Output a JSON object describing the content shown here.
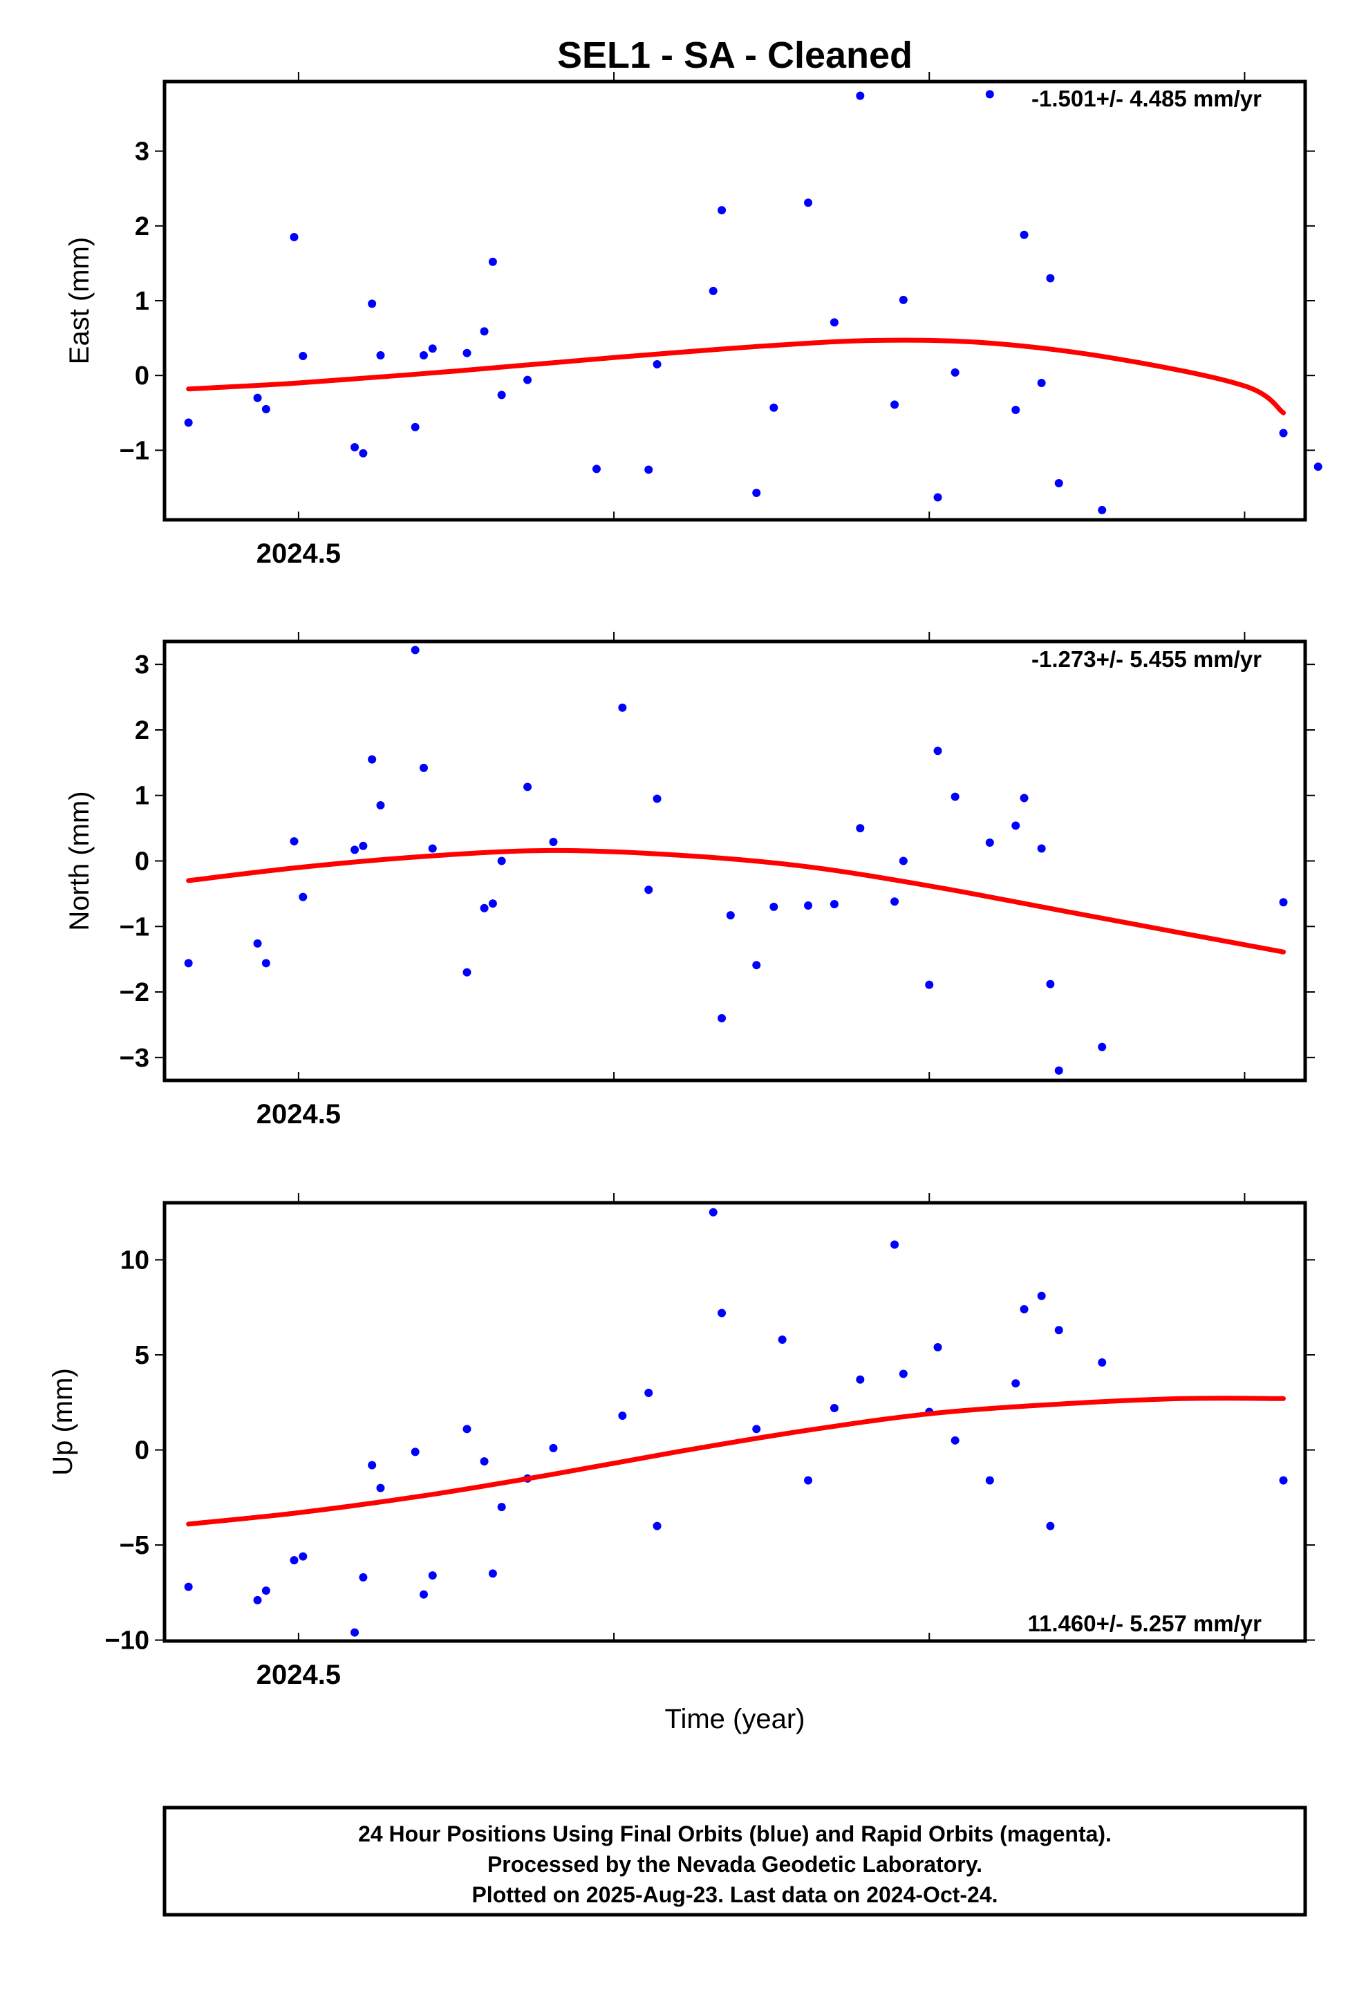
{
  "title": "SEL1  - SA - Cleaned",
  "xlabel": "Time (year)",
  "footer": {
    "line1": "24 Hour Positions Using Final Orbits (blue) and Rapid Orbits (magenta).",
    "line2": "Processed by the Nevada Geodetic Laboratory.",
    "line3": "Plotted on 2025-Aug-23. Last data on 2024-Oct-24."
  },
  "colors": {
    "points": "#0000ff",
    "fit": "#ff0000",
    "frame": "#000000"
  },
  "chart_data": [
    {
      "type": "scatter",
      "name": "east",
      "ylabel": "East (mm)",
      "rate": "-1.501+/- 4.485 mm/yr",
      "xlim": [
        2024.4575,
        2024.8192
      ],
      "ylim": [
        -1.93,
        3.93
      ],
      "xticks": [
        2024.5,
        2024.6,
        2024.7,
        2024.8
      ],
      "xtick_labels": [
        "2024.5",
        "",
        "",
        ""
      ],
      "yticks": [
        3,
        2,
        1,
        0,
        -1
      ],
      "ytick_labels": [
        "3",
        "2",
        "1",
        "0",
        "−1"
      ],
      "x": [
        2024.4651,
        2024.487,
        2024.4897,
        2024.4986,
        2024.5014,
        2024.5178,
        2024.5205,
        2024.5233,
        2024.526,
        2024.537,
        2024.5397,
        2024.5425,
        2024.5534,
        2024.5589,
        2024.5616,
        2024.5644,
        2024.5726,
        2024.5945,
        2024.611,
        2024.6137,
        2024.6315,
        2024.6342,
        2024.6452,
        2024.6507,
        2024.6616,
        2024.6699,
        2024.6781,
        2024.689,
        2024.6918,
        2024.7027,
        2024.7082,
        2024.7192,
        2024.7274,
        2024.7301,
        2024.7356,
        2024.7384,
        2024.7548,
        2024.8123
      ],
      "y": [
        -0.63,
        -0.3,
        -0.45,
        1.85,
        0.26,
        -0.96,
        -1.04,
        0.96,
        0.27,
        -0.69,
        0.27,
        0.36,
        0.3,
        0.59,
        1.52,
        -0.26,
        -0.06,
        -1.25,
        -1.26,
        0.15,
        1.13,
        2.21,
        -1.57,
        -0.43,
        2.31,
        0.71,
        3.74,
        -0.39,
        1.01,
        -1.63,
        0.04,
        3.76,
        -0.46,
        1.88,
        -0.1,
        1.3,
        -1.8,
        -0.77
      ],
      "extra_points": [
        {
          "x": 2024.7411,
          "y": -1.44
        },
        {
          "x": 2024.8233,
          "y": -1.22
        }
      ],
      "fit_x": [
        2024.4651,
        2024.5,
        2024.55,
        2024.6,
        2024.65,
        2024.685,
        2024.72,
        2024.76,
        2024.8,
        2024.8123
      ],
      "fit_y": [
        -0.18,
        -0.1,
        0.06,
        0.24,
        0.4,
        0.47,
        0.43,
        0.22,
        -0.14,
        -0.5
      ]
    },
    {
      "type": "scatter",
      "name": "north",
      "ylabel": "North (mm)",
      "rate": "-1.273+/- 5.455 mm/yr",
      "xlim": [
        2024.4575,
        2024.8192
      ],
      "ylim": [
        -3.35,
        3.35
      ],
      "xticks": [
        2024.5,
        2024.6,
        2024.7,
        2024.8
      ],
      "xtick_labels": [
        "2024.5",
        "",
        "",
        ""
      ],
      "yticks": [
        3,
        2,
        1,
        0,
        -1,
        -2,
        -3
      ],
      "ytick_labels": [
        "3",
        "2",
        "1",
        "0",
        "−1",
        "−2",
        "−3"
      ],
      "x": [
        2024.4651,
        2024.487,
        2024.4897,
        2024.4986,
        2024.5014,
        2024.5178,
        2024.5205,
        2024.5233,
        2024.526,
        2024.537,
        2024.5397,
        2024.5425,
        2024.5534,
        2024.5589,
        2024.5616,
        2024.5644,
        2024.5726,
        2024.5808,
        2024.6027,
        2024.611,
        2024.6137,
        2024.6342,
        2024.637,
        2024.6452,
        2024.6507,
        2024.6616,
        2024.6699,
        2024.6781,
        2024.689,
        2024.6918,
        2024.7,
        2024.7027,
        2024.7082,
        2024.7192,
        2024.7274,
        2024.7301,
        2024.7356,
        2024.7384,
        2024.7411,
        2024.7548,
        2024.8123
      ],
      "y": [
        -1.56,
        -1.26,
        -1.56,
        0.3,
        -0.55,
        0.17,
        0.23,
        1.55,
        0.85,
        3.22,
        1.42,
        0.19,
        -1.7,
        -0.72,
        -0.65,
        0.0,
        1.13,
        0.29,
        2.34,
        -0.44,
        0.95,
        -2.4,
        -0.83,
        -1.59,
        -0.7,
        -0.68,
        -0.66,
        0.5,
        -0.62,
        0.0,
        -1.89,
        1.68,
        0.98,
        0.28,
        0.54,
        0.96,
        0.19,
        -1.88,
        -3.2,
        -2.84,
        -0.63
      ],
      "extra_points": [],
      "fit_x": [
        2024.4651,
        2024.5,
        2024.54,
        2024.58,
        2024.62,
        2024.66,
        2024.7,
        2024.74,
        2024.78,
        2024.8123
      ],
      "fit_y": [
        -0.3,
        -0.1,
        0.07,
        0.16,
        0.09,
        -0.08,
        -0.38,
        -0.74,
        -1.1,
        -1.39
      ]
    },
    {
      "type": "scatter",
      "name": "up",
      "ylabel": "Up (mm)",
      "rate": "11.460+/- 5.257 mm/yr",
      "xlim": [
        2024.4575,
        2024.8192
      ],
      "ylim": [
        -10.05,
        13.0
      ],
      "xticks": [
        2024.5,
        2024.6,
        2024.7,
        2024.8
      ],
      "xtick_labels": [
        "2024.5",
        "",
        "",
        ""
      ],
      "yticks": [
        10,
        5,
        0,
        -5,
        -10
      ],
      "ytick_labels": [
        "10",
        "5",
        "0",
        "−5",
        "−10"
      ],
      "x": [
        2024.4651,
        2024.487,
        2024.4897,
        2024.4986,
        2024.5014,
        2024.5178,
        2024.5205,
        2024.5233,
        2024.526,
        2024.537,
        2024.5397,
        2024.5425,
        2024.5534,
        2024.5589,
        2024.5616,
        2024.5644,
        2024.5726,
        2024.5808,
        2024.6027,
        2024.611,
        2024.6137,
        2024.6315,
        2024.6342,
        2024.6452,
        2024.6534,
        2024.6616,
        2024.6699,
        2024.6781,
        2024.689,
        2024.6918,
        2024.7,
        2024.7027,
        2024.7082,
        2024.7192,
        2024.7274,
        2024.7301,
        2024.7356,
        2024.7384,
        2024.7411,
        2024.7548,
        2024.8123
      ],
      "y": [
        -7.2,
        -7.9,
        -7.4,
        -5.8,
        -5.6,
        -9.6,
        -6.7,
        -0.8,
        -2.0,
        -0.1,
        -7.6,
        -6.6,
        1.1,
        -0.6,
        -6.5,
        -3.0,
        -1.5,
        0.1,
        1.8,
        3.0,
        -4.0,
        12.5,
        7.2,
        1.1,
        5.8,
        -1.6,
        2.2,
        3.7,
        10.8,
        4.0,
        2.0,
        5.4,
        0.5,
        -1.6,
        3.5,
        7.4,
        8.1,
        -4.0,
        6.3,
        4.6,
        -1.6
      ],
      "extra_points": [],
      "fit_x": [
        2024.4651,
        2024.5,
        2024.54,
        2024.58,
        2024.62,
        2024.66,
        2024.7,
        2024.74,
        2024.78,
        2024.8123
      ],
      "fit_y": [
        -3.9,
        -3.3,
        -2.4,
        -1.3,
        -0.1,
        1.0,
        1.9,
        2.4,
        2.7,
        2.7
      ]
    }
  ]
}
